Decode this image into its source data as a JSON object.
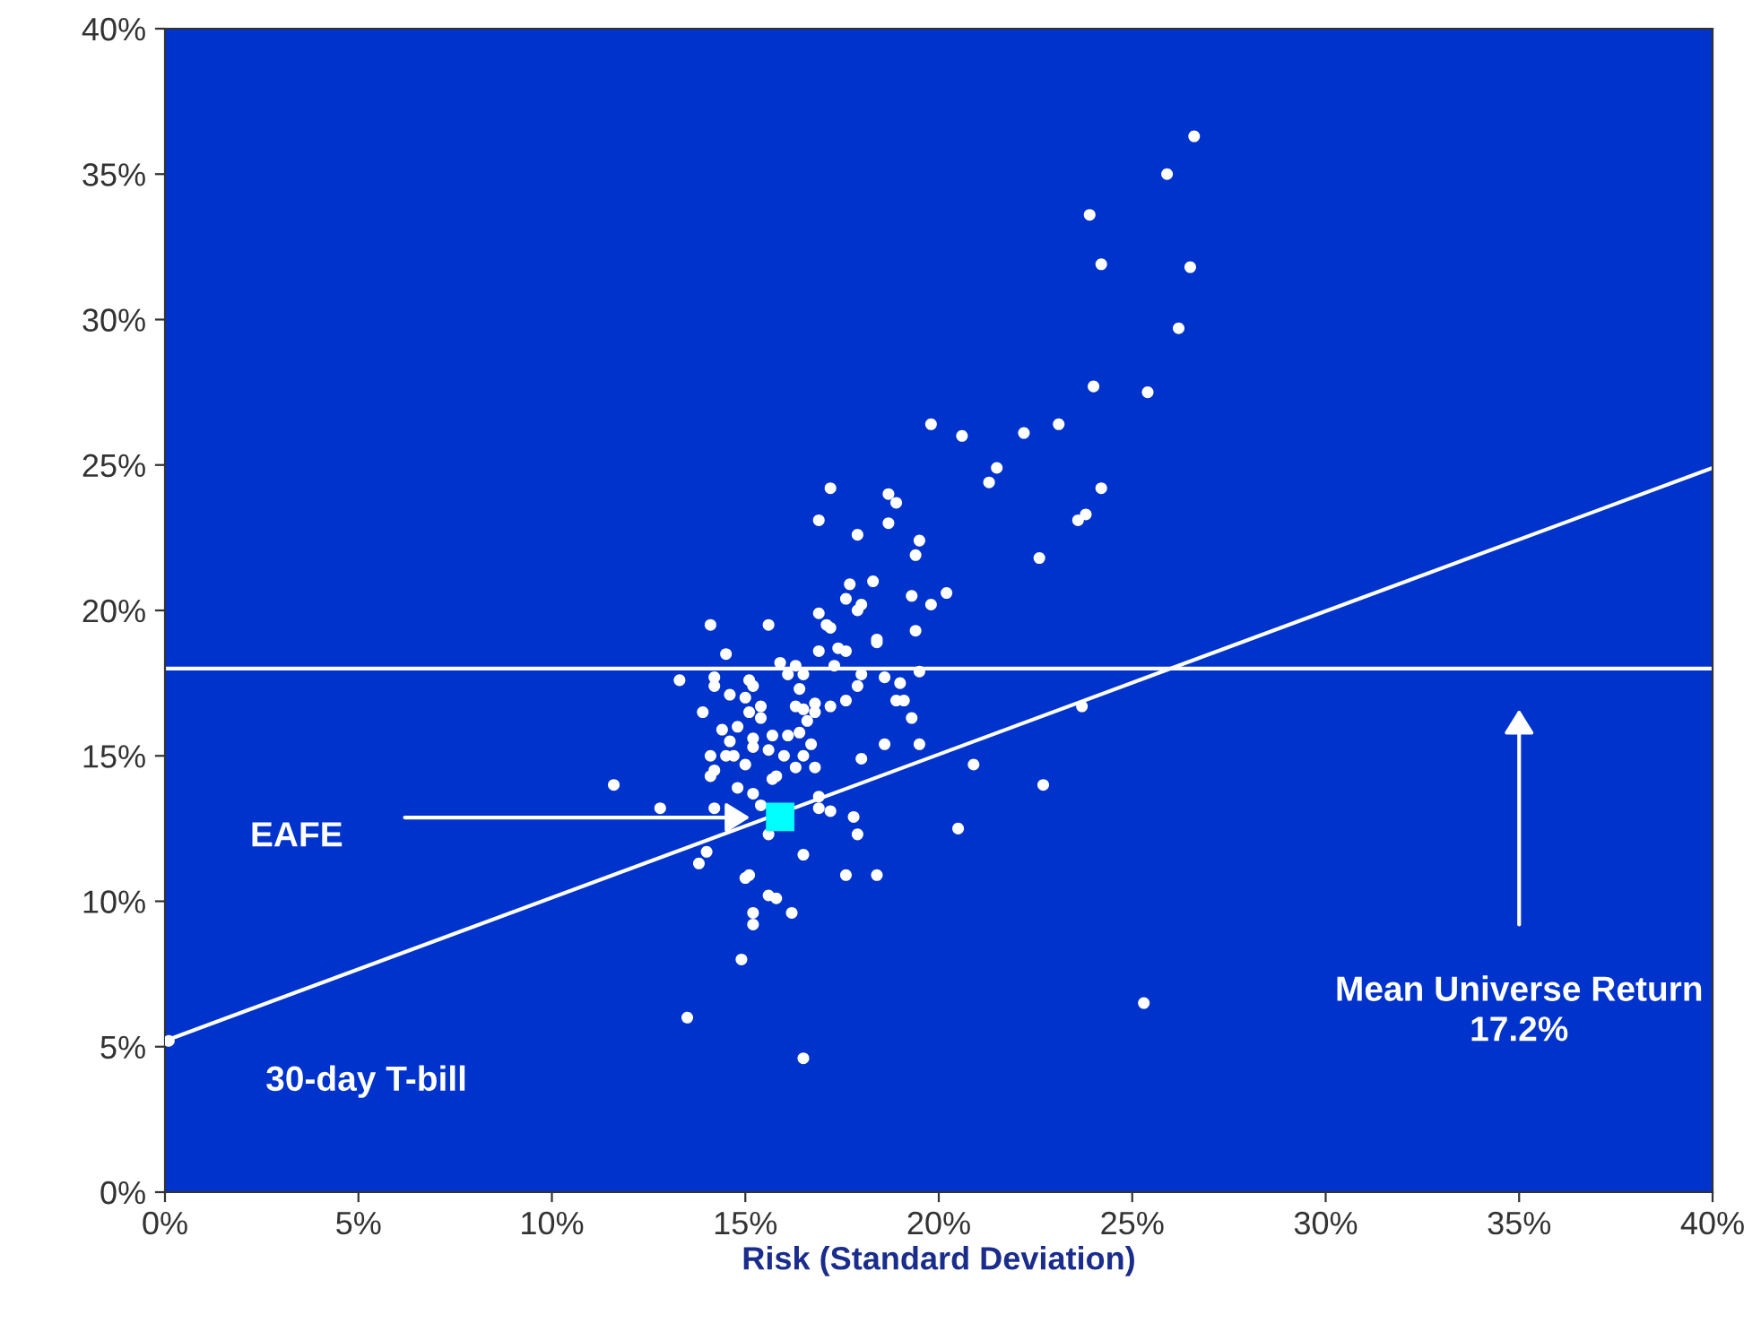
{
  "chart_data": {
    "type": "scatter",
    "xlabel": "Risk (Standard Deviation)",
    "marker": "circle",
    "xlim": [
      0,
      40
    ],
    "ylim": [
      0,
      40
    ],
    "xticks": [
      {
        "value": 0,
        "label": "0%"
      },
      {
        "value": 5,
        "label": "5%"
      },
      {
        "value": 10,
        "label": "10%"
      },
      {
        "value": 15,
        "label": "15%"
      },
      {
        "value": 20,
        "label": "20%"
      },
      {
        "value": 25,
        "label": "25%"
      },
      {
        "value": 30,
        "label": "30%"
      },
      {
        "value": 35,
        "label": "35%"
      },
      {
        "value": 40,
        "label": "40%"
      }
    ],
    "yticks": [
      {
        "value": 0,
        "label": "0%"
      },
      {
        "value": 5,
        "label": "5%"
      },
      {
        "value": 10,
        "label": "10%"
      },
      {
        "value": 15,
        "label": "15%"
      },
      {
        "value": 20,
        "label": "20%"
      },
      {
        "value": 25,
        "label": "25%"
      },
      {
        "value": 30,
        "label": "30%"
      },
      {
        "value": 35,
        "label": "35%"
      },
      {
        "value": 40,
        "label": "40%"
      }
    ],
    "series": [
      {
        "color": "#ffffff",
        "x": [
          26.6,
          25.9,
          23.9,
          24.2,
          26.5,
          26.2,
          24.0,
          25.4,
          19.8,
          20.6,
          22.2,
          23.1,
          21.5,
          21.3,
          24.2,
          18.7,
          18.9,
          18.7,
          17.9,
          23.8,
          23.6,
          19.5,
          19.4,
          22.6,
          18.3,
          19.3,
          19.8,
          20.2,
          18.0,
          19.4,
          18.4,
          18.4,
          19.5,
          18.0,
          18.6,
          19.0,
          17.9,
          18.9,
          19.1,
          19.3,
          23.7,
          18.6,
          19.5,
          18.0,
          20.9,
          22.7,
          25.3,
          20.5,
          17.2,
          16.9,
          17.7,
          17.6,
          17.9,
          16.9,
          17.1,
          17.2,
          14.1,
          15.6,
          14.5,
          16.9,
          17.4,
          17.6,
          17.3,
          15.9,
          16.3,
          13.3,
          14.2,
          15.1,
          15.2,
          14.2,
          16.1,
          16.5,
          16.4,
          14.6,
          15.0,
          13.9,
          15.4,
          16.3,
          16.5,
          16.8,
          17.2,
          17.6,
          15.1,
          15.4,
          16.8,
          16.6,
          14.4,
          14.8,
          14.6,
          15.2,
          15.7,
          16.1,
          16.4,
          16.7,
          15.2,
          15.6,
          16.0,
          16.5,
          14.1,
          14.5,
          14.7,
          15.0,
          16.3,
          16.8,
          14.2,
          14.1,
          15.8,
          15.7,
          11.6,
          14.8,
          15.2,
          16.9,
          12.8,
          14.2,
          15.4,
          16.9,
          17.2,
          17.8,
          17.9,
          15.6,
          14.0,
          13.8,
          16.5,
          15.1,
          15.0,
          17.6,
          18.4,
          15.6,
          15.8,
          16.2,
          15.2,
          15.2,
          14.9,
          13.5,
          16.5,
          0.1
        ],
        "values": [
          36.3,
          35.0,
          33.6,
          31.9,
          31.8,
          29.7,
          27.7,
          27.5,
          26.4,
          26.0,
          26.1,
          26.4,
          24.9,
          24.4,
          24.2,
          24.0,
          23.7,
          23.0,
          22.6,
          23.3,
          23.1,
          22.4,
          21.9,
          21.8,
          21.0,
          20.5,
          20.2,
          20.6,
          20.2,
          19.3,
          19.0,
          18.9,
          17.9,
          17.8,
          17.7,
          17.5,
          17.4,
          16.9,
          16.9,
          16.3,
          16.7,
          15.4,
          15.4,
          14.9,
          14.7,
          14.0,
          6.5,
          12.5,
          24.2,
          23.1,
          20.9,
          20.4,
          20.0,
          19.9,
          19.5,
          19.4,
          19.5,
          19.5,
          18.5,
          18.6,
          18.7,
          18.6,
          18.1,
          18.2,
          18.1,
          17.6,
          17.7,
          17.6,
          17.4,
          17.4,
          17.8,
          17.8,
          17.3,
          17.1,
          17.0,
          16.5,
          16.7,
          16.7,
          16.6,
          16.8,
          16.7,
          16.9,
          16.5,
          16.3,
          16.5,
          16.2,
          15.9,
          16.0,
          15.5,
          15.6,
          15.7,
          15.7,
          15.8,
          15.4,
          15.3,
          15.2,
          15.0,
          15.0,
          15.0,
          15.0,
          15.0,
          14.7,
          14.6,
          14.6,
          14.5,
          14.3,
          14.3,
          14.2,
          14.0,
          13.9,
          13.7,
          13.6,
          13.2,
          13.2,
          13.3,
          13.2,
          13.1,
          12.9,
          12.3,
          12.3,
          11.7,
          11.3,
          11.6,
          10.9,
          10.8,
          10.9,
          10.9,
          10.2,
          10.1,
          9.6,
          9.6,
          9.2,
          8.0,
          6.0,
          4.6,
          5.2
        ]
      },
      {
        "type": "scatter",
        "color": "#00ffff",
        "marker": "square",
        "x": [
          15.9
        ],
        "values": [
          12.9
        ]
      },
      {
        "type": "line",
        "color": "#ffffff",
        "marker": "none",
        "line_style": "solid",
        "x": [
          0,
          40
        ],
        "values": [
          5.2,
          24.9
        ]
      }
    ],
    "ref_lines": [
      {
        "axis": "y",
        "value": 18.0,
        "color": "#ffffff"
      }
    ],
    "annotations": [
      "EAFE",
      "Mean Universe Return\n17.2%",
      "30-day T-bill"
    ]
  }
}
